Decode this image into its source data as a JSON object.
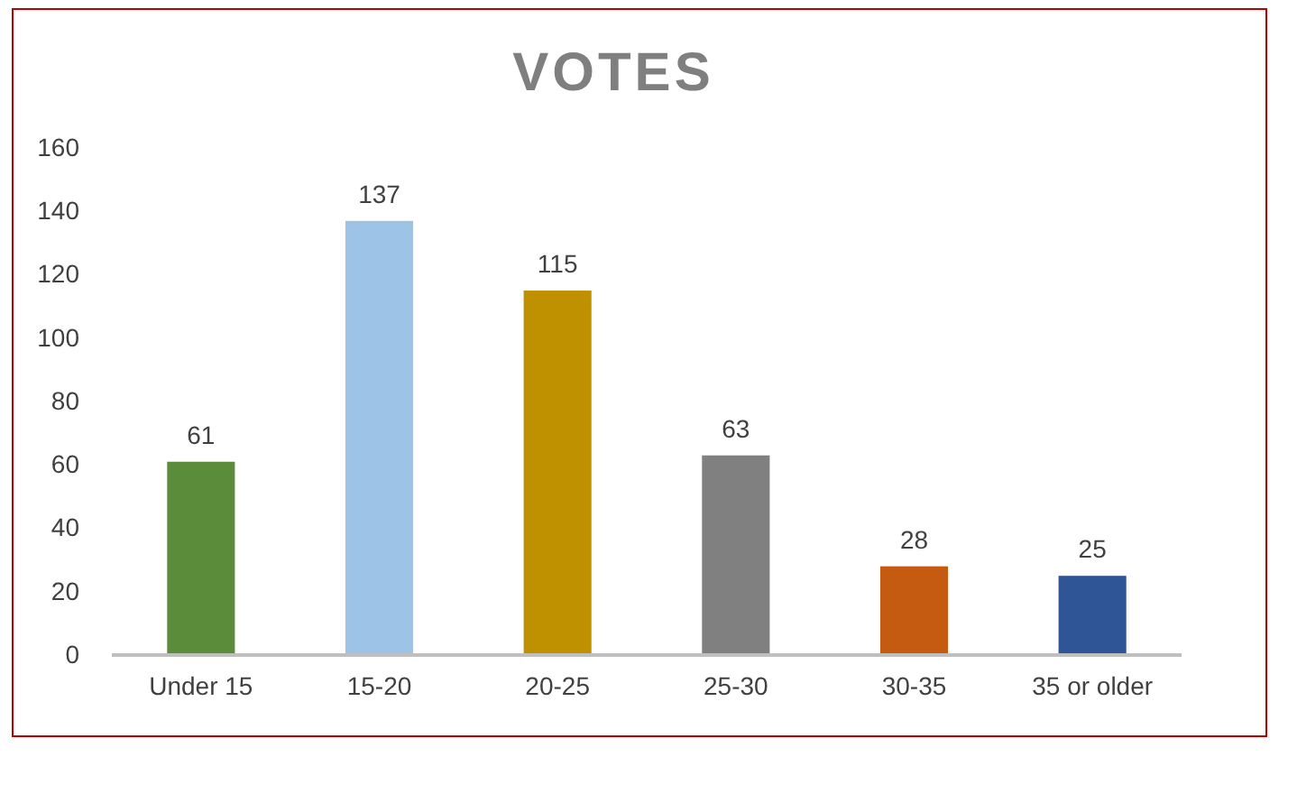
{
  "chart_data": {
    "type": "bar",
    "title": "VOTES",
    "categories": [
      "Under 15",
      "15-20",
      "20-25",
      "25-30",
      "30-35",
      "35 or older"
    ],
    "values": [
      61,
      137,
      115,
      63,
      28,
      25
    ],
    "colors": [
      "#5b8c3a",
      "#9dc3e6",
      "#bf9000",
      "#808080",
      "#c55a11",
      "#2f5597"
    ],
    "ylim": [
      0,
      160
    ],
    "yticks": [
      0,
      20,
      40,
      60,
      80,
      100,
      120,
      140,
      160
    ],
    "data_labels": true
  }
}
